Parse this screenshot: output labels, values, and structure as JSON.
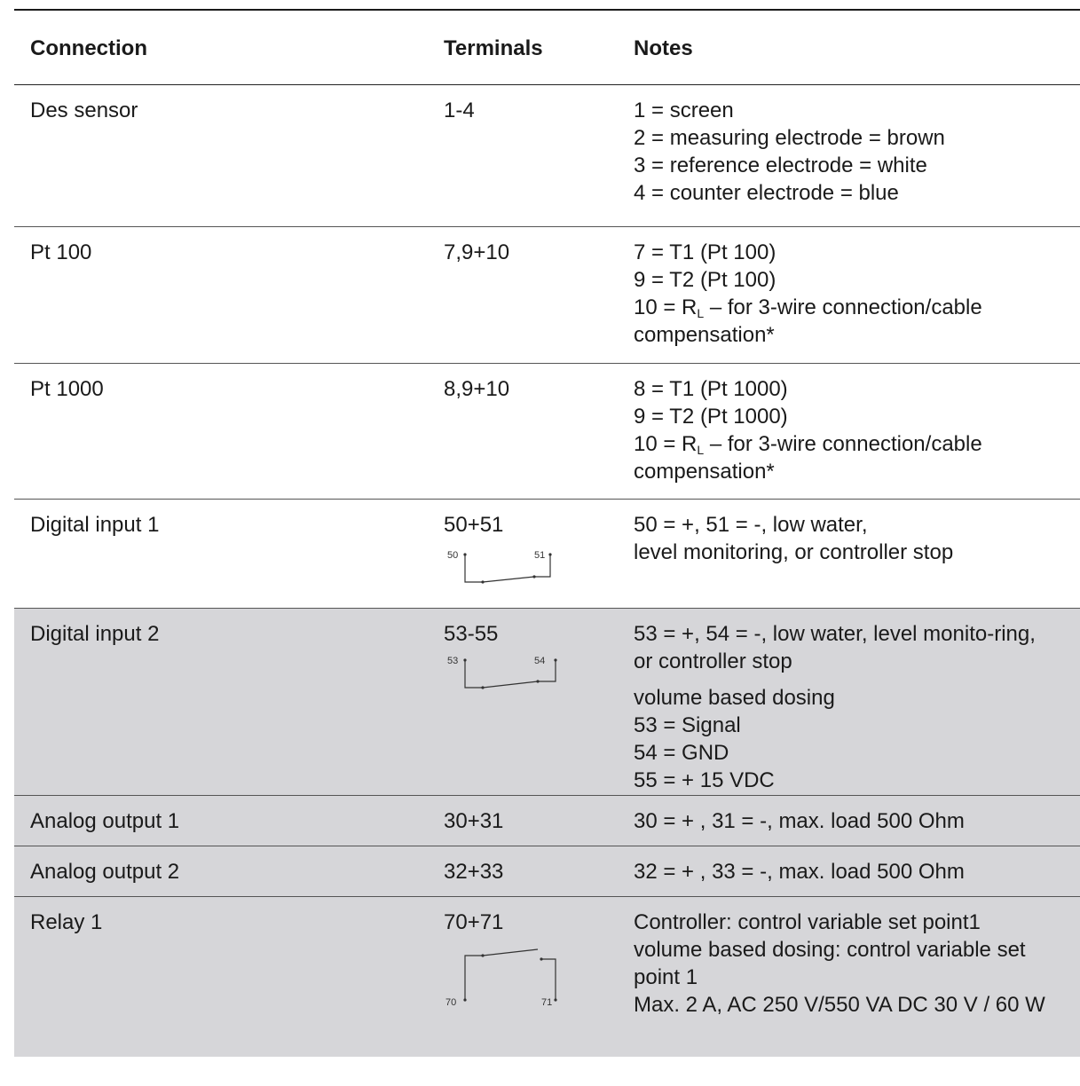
{
  "header": {
    "connection": "Connection",
    "terminals": "Terminals",
    "notes": "Notes"
  },
  "rows": [
    {
      "connection": "Des sensor",
      "terminals": "1-4",
      "notes": [
        "1 = screen",
        "2 = measuring electrode = brown",
        "3 = reference electrode = white",
        "4 = counter electrode = blue"
      ]
    },
    {
      "connection": "Pt 100",
      "terminals": "7,9+10",
      "notes": [
        "7 = T1 (Pt 100)",
        "9 = T2 (Pt 100)"
      ],
      "rl_prefix": "10 = R",
      "rl_sub": "L",
      "rl_suffix": " – for 3-wire connection/cable compensation*"
    },
    {
      "connection": "Pt 1000",
      "terminals": "8,9+10",
      "notes": [
        "8 = T1 (Pt 1000)",
        "9 = T2 (Pt 1000)"
      ],
      "rl_prefix": "10 = R",
      "rl_sub": "L",
      "rl_suffix": " – for 3-wire connection/cable compensation*"
    },
    {
      "connection": "Digital input 1",
      "terminals": "50+51",
      "notes": [
        "50 = +, 51 = -, low water,",
        "level monitoring, or controller stop"
      ],
      "diagram_labels": [
        "50",
        "51"
      ]
    },
    {
      "connection": "Digital input 2",
      "terminals": "53-55",
      "notes_a": "53 = +, 54 = -, low water, level monito-ring, or controller stop",
      "notes_b": [
        "volume based dosing",
        "53 = Signal",
        "54 = GND",
        "55 = + 15 VDC"
      ],
      "diagram_labels": [
        "53",
        "54"
      ]
    },
    {
      "connection": "Analog output 1",
      "terminals": "30+31",
      "notes": [
        "30 = + , 31 = -, max. load 500 Ohm"
      ]
    },
    {
      "connection": "Analog output 2",
      "terminals": "32+33",
      "notes": [
        "32 = + , 33 = -, max. load 500 Ohm"
      ]
    },
    {
      "connection": "Relay 1",
      "terminals": "70+71",
      "notes": [
        "Controller: control variable set point1",
        "volume based dosing: control variable set point 1",
        "Max. 2 A, AC 250 V/550 VA DC 30 V / 60 W"
      ],
      "diagram_labels": [
        "70",
        "71"
      ]
    }
  ]
}
